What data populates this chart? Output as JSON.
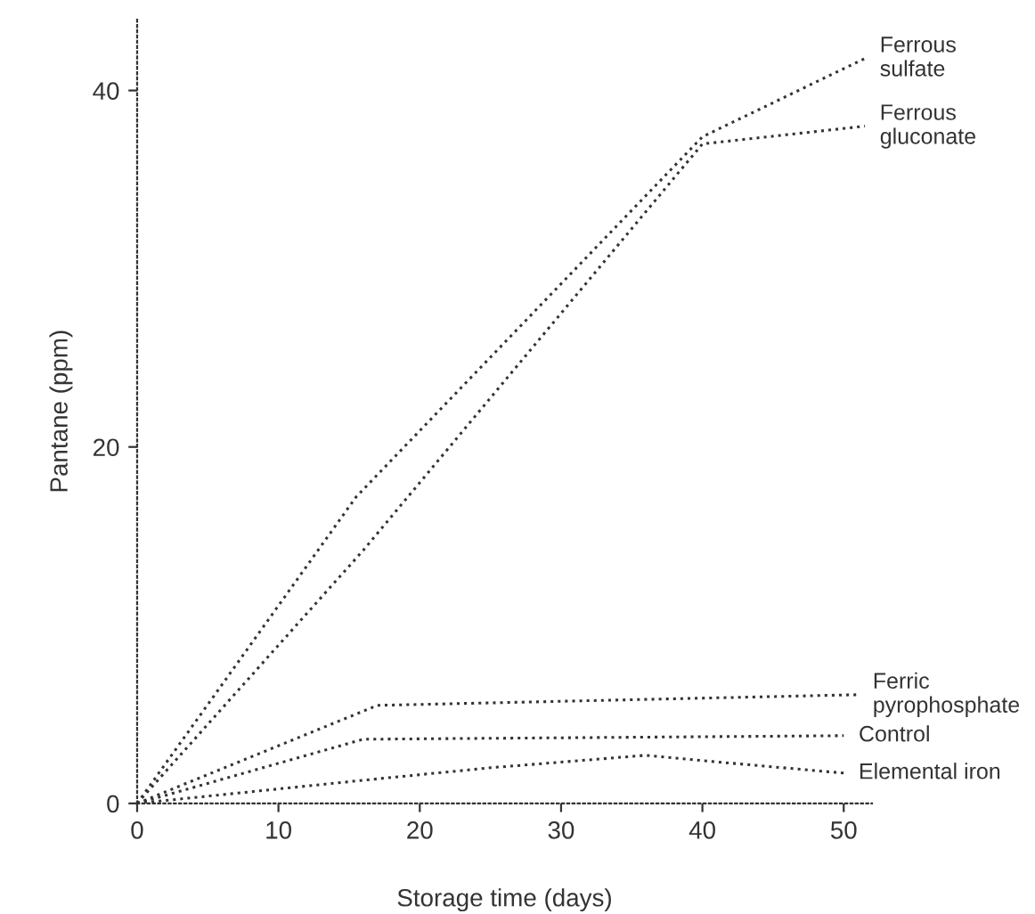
{
  "chart_data": {
    "type": "line",
    "xlabel": "Storage time (days)",
    "ylabel": "Pantane (ppm)",
    "xlim": [
      0,
      52
    ],
    "xticks": [
      0,
      10,
      20,
      30,
      40,
      50
    ],
    "ylim": [
      0,
      44
    ],
    "yticks": [
      0,
      20,
      40
    ],
    "grid": false,
    "legend": false,
    "marker": "none",
    "line_style": "dotted",
    "series": [
      {
        "name": "Ferrous\nsulfate",
        "color": "#333333",
        "x": [
          0,
          15.5,
          40,
          51.5
        ],
        "values": [
          0,
          17.2,
          37.4,
          41.8
        ]
      },
      {
        "name": "Ferrous\ngluconate",
        "color": "#333333",
        "x": [
          0,
          16,
          40,
          51.5
        ],
        "values": [
          0,
          14.2,
          37,
          38
        ]
      },
      {
        "name": "Ferric\npyrophosphate",
        "color": "#333333",
        "x": [
          0,
          17,
          51
        ],
        "values": [
          0,
          5.5,
          6.1
        ]
      },
      {
        "name": "Control",
        "color": "#333333",
        "x": [
          0,
          16,
          50
        ],
        "values": [
          0,
          3.6,
          3.8
        ]
      },
      {
        "name": "Elemental iron",
        "color": "#333333",
        "x": [
          0,
          16,
          25,
          36,
          40,
          50
        ],
        "values": [
          0,
          1.3,
          2.0,
          2.7,
          2.4,
          1.7
        ]
      }
    ]
  }
}
